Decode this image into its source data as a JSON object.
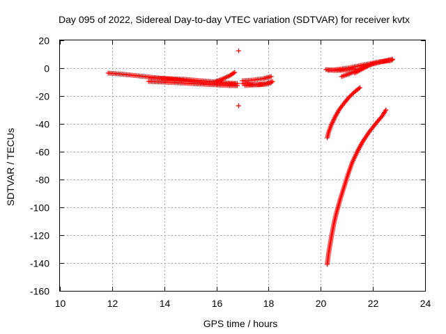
{
  "chart_data": {
    "type": "scatter",
    "title": "Day 095 of 2022, Sidereal Day-to-day VTEC variation (SDTVAR) for receiver kvtx",
    "xlabel": "GPS time / hours",
    "ylabel": "SDTVAR / TECUs",
    "xlim": [
      10,
      24
    ],
    "ylim": [
      -160,
      20
    ],
    "xticks": [
      10,
      12,
      14,
      16,
      18,
      20,
      22,
      24
    ],
    "yticks": [
      20,
      0,
      -20,
      -40,
      -60,
      -80,
      -100,
      -120,
      -140,
      -160
    ],
    "grid": true,
    "marker": "plus",
    "color": "#ff0000",
    "series": [
      {
        "segments": [
          {
            "x": [
              11.85,
              12.5,
              13.0,
              13.5,
              14.0,
              14.5,
              15.0,
              15.5,
              16.0,
              16.5,
              16.7
            ],
            "y": [
              -3.5,
              -4.5,
              -5.5,
              -6.5,
              -7.5,
              -8.5,
              -9.5,
              -10.5,
              -11.0,
              -11.5,
              -11.5
            ]
          },
          {
            "x": [
              13.4,
              14.0,
              14.5,
              15.0,
              15.5,
              16.0,
              16.5,
              16.8
            ],
            "y": [
              -9.5,
              -10.0,
              -10.5,
              -11.0,
              -11.5,
              -12.0,
              -12.5,
              -12.5
            ]
          },
          {
            "x": [
              13.5,
              14.2,
              14.8,
              15.4,
              16.0,
              16.8
            ],
            "y": [
              -7.0,
              -7.5,
              -8.0,
              -9.0,
              -10.0,
              -11.0
            ]
          },
          {
            "x": [
              15.9,
              16.2,
              16.5,
              16.7
            ],
            "y": [
              -10.0,
              -8.0,
              -5.5,
              -3.0
            ]
          },
          {
            "x": [
              17.0,
              17.3,
              17.6,
              17.9,
              18.1
            ],
            "y": [
              -11.0,
              -11.5,
              -12.0,
              -11.5,
              -10.5
            ]
          },
          {
            "x": [
              17.0,
              17.4,
              17.8,
              18.1
            ],
            "y": [
              -9.0,
              -8.5,
              -7.5,
              -6.0
            ]
          },
          {
            "x": [
              17.1,
              17.5,
              17.9,
              18.15
            ],
            "y": [
              -12.5,
              -12.0,
              -11.0,
              -9.5
            ]
          },
          {
            "x": [
              20.2,
              20.5,
              20.8,
              21.1,
              21.3
            ],
            "y": [
              -1.0,
              -1.5,
              -1.5,
              -1.0,
              -0.5
            ]
          },
          {
            "x": [
              20.3,
              20.6,
              21.0,
              21.4,
              21.8,
              22.2,
              22.7
            ],
            "y": [
              -1.5,
              -1.0,
              0.0,
              1.5,
              3.0,
              4.5,
              5.5
            ]
          },
          {
            "x": [
              20.8,
              21.1,
              21.4,
              21.7,
              22.0,
              22.4,
              22.75
            ],
            "y": [
              -6.0,
              -4.0,
              -1.5,
              1.0,
              3.0,
              5.0,
              6.5
            ]
          },
          {
            "x": [
              21.3,
              21.6,
              21.9,
              22.3,
              22.75
            ],
            "y": [
              -3.5,
              -0.5,
              2.5,
              4.5,
              6.0
            ]
          },
          {
            "x": [
              20.25,
              20.3,
              20.4,
              20.55,
              20.7,
              20.9,
              21.1,
              21.3,
              21.5
            ],
            "y": [
              -50.0,
              -46.0,
              -41.0,
              -35.0,
              -30.0,
              -25.0,
              -20.5,
              -17.0,
              -14.0
            ]
          },
          {
            "x": [
              20.25,
              20.3,
              20.4,
              20.5,
              20.6,
              20.75,
              20.9,
              21.05,
              21.2,
              21.4,
              21.6,
              21.85,
              22.1,
              22.35,
              22.5
            ],
            "y": [
              -141.0,
              -133.0,
              -122.0,
              -112.0,
              -104.0,
              -94.0,
              -85.0,
              -76.0,
              -68.0,
              -60.0,
              -53.0,
              -46.0,
              -40.0,
              -34.5,
              -30.0
            ]
          }
        ],
        "outliers": [
          {
            "x": 16.85,
            "y": 12.5
          },
          {
            "x": 16.85,
            "y": -27.0
          }
        ]
      }
    ]
  }
}
